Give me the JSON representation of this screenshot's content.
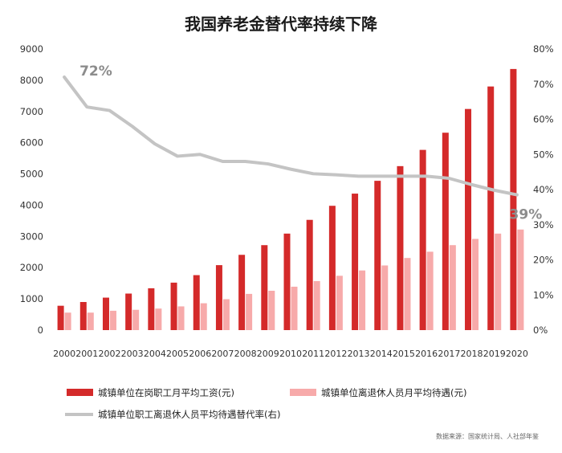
{
  "chart_data": {
    "type": "bar",
    "title": "我国养老金替代率持续下降",
    "categories": [
      "2000",
      "2001",
      "2002",
      "2003",
      "2004",
      "2005",
      "2006",
      "2007",
      "2008",
      "2009",
      "2010",
      "2011",
      "2012",
      "2013",
      "2014",
      "2015",
      "2016",
      "2017",
      "2018",
      "2019",
      "2020"
    ],
    "series": [
      {
        "name": "城镇单位在岗职工月平均工资(元)",
        "type": "bar",
        "axis": "left",
        "color": "#d42a2a",
        "values": [
          780,
          900,
          1040,
          1170,
          1340,
          1520,
          1760,
          2080,
          2410,
          2720,
          3090,
          3530,
          3980,
          4370,
          4780,
          5250,
          5770,
          6320,
          7080,
          7800,
          8360
        ]
      },
      {
        "name": "城镇单位离退休人员月平均待遇(元)",
        "type": "bar",
        "axis": "left",
        "color": "#f7aaaa",
        "values": [
          560,
          560,
          620,
          650,
          690,
          760,
          860,
          990,
          1160,
          1260,
          1390,
          1570,
          1740,
          1910,
          2070,
          2310,
          2510,
          2720,
          2920,
          3090,
          3220
        ]
      },
      {
        "name": "城镇单位职工离退休人员平均待遇替代率(右)",
        "type": "line",
        "axis": "right",
        "color": "#c4c4c4",
        "values": [
          0.72,
          0.635,
          0.625,
          0.58,
          0.53,
          0.495,
          0.5,
          0.48,
          0.48,
          0.473,
          0.458,
          0.445,
          0.442,
          0.438,
          0.438,
          0.438,
          0.438,
          0.432,
          0.414,
          0.398,
          0.385
        ]
      }
    ],
    "y_left": {
      "min": 0,
      "max": 9000,
      "ticks": [
        "0",
        "1000",
        "2000",
        "3000",
        "4000",
        "5000",
        "6000",
        "7000",
        "8000",
        "9000"
      ]
    },
    "y_right": {
      "min": 0,
      "max": 0.8,
      "ticks": [
        "0%",
        "10%",
        "20%",
        "30%",
        "40%",
        "50%",
        "60%",
        "70%",
        "80%"
      ]
    },
    "annotations": [
      {
        "text": "72%",
        "index": 0
      },
      {
        "text": "39%",
        "index": 20
      }
    ],
    "grid": false,
    "legend_position": "bottom",
    "source": "数据来源：国家统计局、人社部年鉴"
  }
}
